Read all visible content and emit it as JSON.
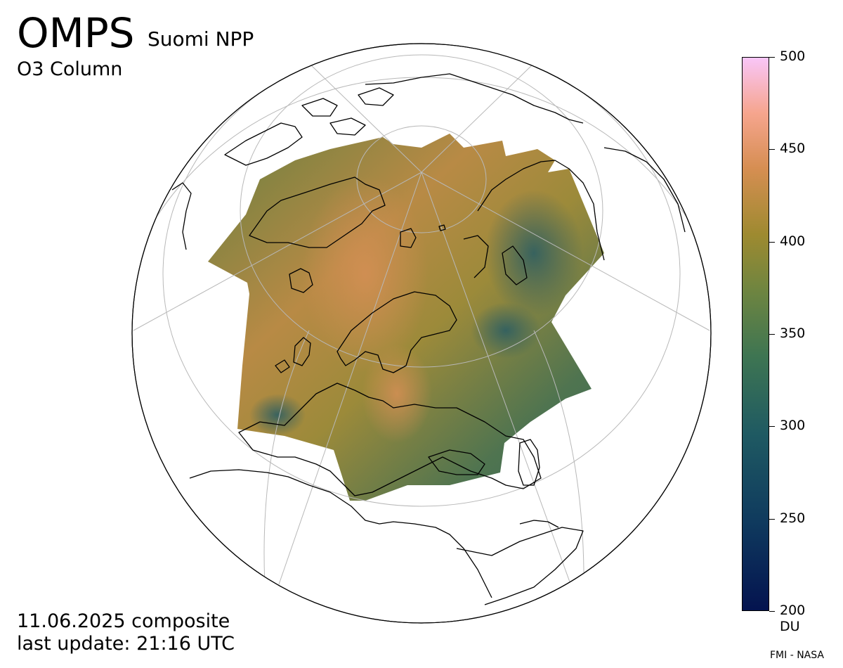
{
  "header": {
    "instrument": "OMPS",
    "platform": "Suomi NPP",
    "product": "O3 Column"
  },
  "footer": {
    "date_line": "11.06.2025 composite",
    "update_line": "last update: 21:16 UTC",
    "credit": "FMI - NASA"
  },
  "colorbar": {
    "ticks": [
      "500",
      "450",
      "400",
      "350",
      "300",
      "250",
      "200"
    ],
    "range": [
      200,
      500
    ],
    "unit": "DU",
    "colors": [
      "#04134f",
      "#1f5a62",
      "#3e7552",
      "#9e8a30",
      "#d68e52",
      "#f6a58e",
      "#f9c6f8"
    ]
  },
  "map": {
    "projection": "orthographic",
    "center": "Arctic / Europe",
    "grid": true
  }
}
